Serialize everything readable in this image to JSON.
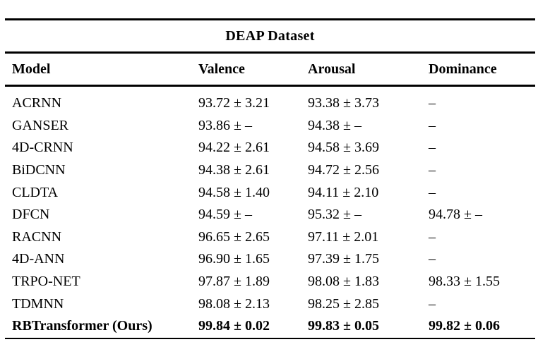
{
  "colors": {
    "background": "#ffffff",
    "text": "#000000",
    "rule": "#000000"
  },
  "table": {
    "title": "DEAP Dataset",
    "columns": [
      "Model",
      "Valence",
      "Arousal",
      "Dominance"
    ],
    "rows": [
      {
        "model": "ACRNN",
        "valence": "93.72 ± 3.21",
        "arousal": "93.38 ± 3.73",
        "dominance": "–"
      },
      {
        "model": "GANSER",
        "valence": "93.86 ± –",
        "arousal": "94.38 ± –",
        "dominance": "–"
      },
      {
        "model": "4D-CRNN",
        "valence": "94.22 ± 2.61",
        "arousal": "94.58 ± 3.69",
        "dominance": "–"
      },
      {
        "model": "BiDCNN",
        "valence": "94.38 ± 2.61",
        "arousal": "94.72 ± 2.56",
        "dominance": "–"
      },
      {
        "model": "CLDTA",
        "valence": "94.58 ± 1.40",
        "arousal": "94.11 ± 2.10",
        "dominance": "–"
      },
      {
        "model": "DFCN",
        "valence": "94.59 ± –",
        "arousal": "95.32 ± –",
        "dominance": "94.78 ± –"
      },
      {
        "model": "RACNN",
        "valence": "96.65 ± 2.65",
        "arousal": "97.11 ± 2.01",
        "dominance": "–"
      },
      {
        "model": "4D-ANN",
        "valence": "96.90 ± 1.65",
        "arousal": "97.39 ± 1.75",
        "dominance": "–"
      },
      {
        "model": "TRPO-NET",
        "valence": "97.87 ± 1.89",
        "arousal": "98.08 ± 1.83",
        "dominance": "98.33 ± 1.55"
      },
      {
        "model": "TDMNN",
        "valence": "98.08 ± 2.13",
        "arousal": "98.25 ± 2.85",
        "dominance": "–"
      },
      {
        "model": "RBTransformer (Ours)",
        "valence": "99.84 ± 0.02",
        "arousal": "99.83 ± 0.05",
        "dominance": "99.82 ± 0.06"
      }
    ]
  }
}
